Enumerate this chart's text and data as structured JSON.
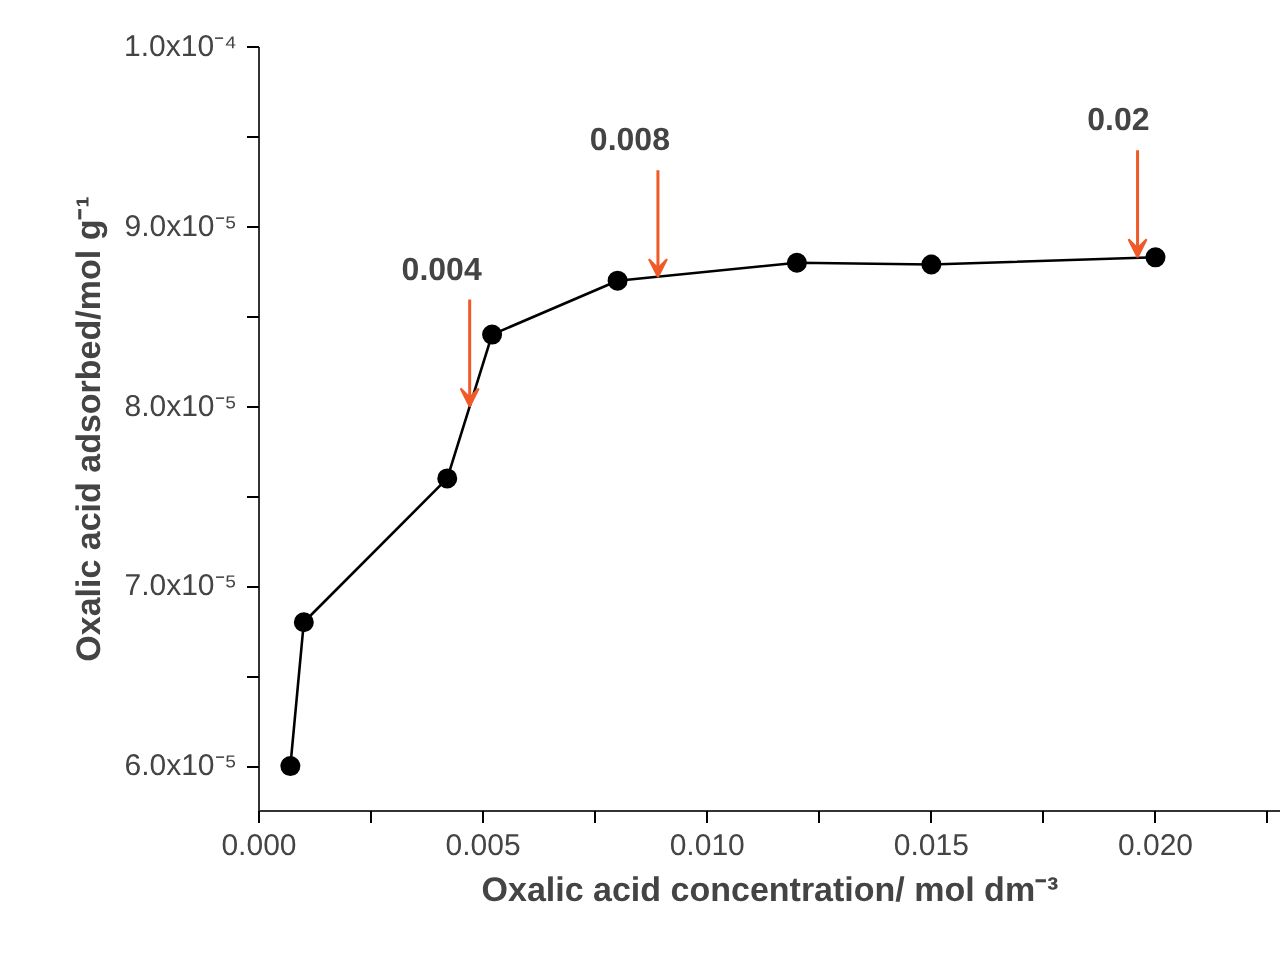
{
  "chart_data": {
    "type": "line",
    "xlabel": "Oxalic acid concentration/ mol dm⁻³",
    "ylabel": "Oxalic acid adsorbed/mol g⁻¹",
    "x": [
      0.0007,
      0.001,
      0.0042,
      0.0052,
      0.008,
      0.012,
      0.015,
      0.02
    ],
    "series": [
      {
        "color": "#000000",
        "values": [
          6e-05,
          6.8e-05,
          7.6e-05,
          8.4e-05,
          8.7e-05,
          8.8e-05,
          8.79e-05,
          8.83e-05
        ]
      }
    ],
    "marker": "circle",
    "line_style": "solid",
    "grid": false,
    "xlim": [
      0,
      0.0228
    ],
    "ylim": [
      5.75e-05,
      0.0001
    ],
    "xticks": [
      {
        "value": 0,
        "label": "0.000"
      },
      {
        "value": 0.0025,
        "label": null
      },
      {
        "value": 0.005,
        "label": "0.005"
      },
      {
        "value": 0.0075,
        "label": null
      },
      {
        "value": 0.01,
        "label": "0.010"
      },
      {
        "value": 0.0125,
        "label": null
      },
      {
        "value": 0.015,
        "label": "0.015"
      },
      {
        "value": 0.0175,
        "label": null
      },
      {
        "value": 0.02,
        "label": "0.020"
      },
      {
        "value": 0.0225,
        "label": null
      }
    ],
    "yticks": [
      {
        "value": 6e-05,
        "label": "6.0x10⁻⁵"
      },
      {
        "value": 6.5e-05,
        "label": null
      },
      {
        "value": 7e-05,
        "label": "7.0x10⁻⁵"
      },
      {
        "value": 7.5e-05,
        "label": null
      },
      {
        "value": 8e-05,
        "label": "8.0x10⁻⁵"
      },
      {
        "value": 8.5e-05,
        "label": null
      },
      {
        "value": 9e-05,
        "label": "9.0x10⁻⁵"
      },
      {
        "value": 9.5e-05,
        "label": null
      },
      {
        "value": 0.0001,
        "label": "1.0x10⁻⁴"
      }
    ],
    "annotations": [
      {
        "text": "0.004",
        "x": 0.0047,
        "y": 8e-05
      },
      {
        "text": "0.008",
        "x": 0.0089,
        "y": 8.72e-05
      },
      {
        "text": "0.02",
        "x": 0.0196,
        "y": 8.83e-05
      }
    ]
  }
}
